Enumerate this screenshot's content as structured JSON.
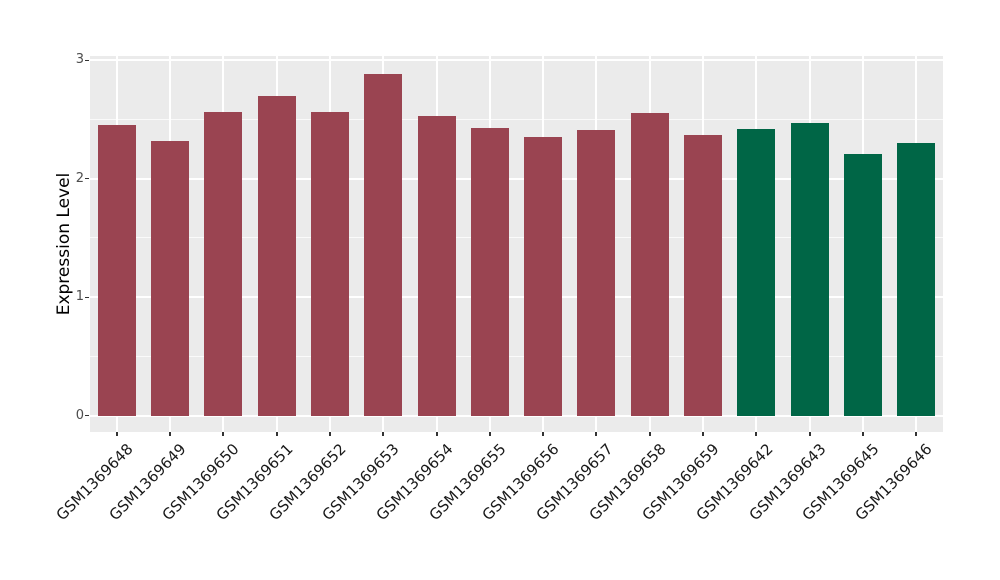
{
  "chart_data": {
    "type": "bar",
    "title": "",
    "ylabel": "Expression Level",
    "xlabel": "",
    "categories": [
      "GSM1369648",
      "GSM1369649",
      "GSM1369650",
      "GSM1369651",
      "GSM1369652",
      "GSM1369653",
      "GSM1369654",
      "GSM1369655",
      "GSM1369656",
      "GSM1369657",
      "GSM1369658",
      "GSM1369659",
      "GSM1369642",
      "GSM1369643",
      "GSM1369645",
      "GSM1369646"
    ],
    "values": [
      2.45,
      2.32,
      2.56,
      2.7,
      2.56,
      2.88,
      2.53,
      2.43,
      2.35,
      2.41,
      2.55,
      2.37,
      2.42,
      2.47,
      2.21,
      2.3
    ],
    "bar_colors": [
      "#9A4451",
      "#9A4451",
      "#9A4451",
      "#9A4451",
      "#9A4451",
      "#9A4451",
      "#9A4451",
      "#9A4451",
      "#9A4451",
      "#9A4451",
      "#9A4451",
      "#9A4451",
      "#006646",
      "#006646",
      "#006646",
      "#006646"
    ],
    "group_colors": {
      "group1": "#9A4451",
      "group2": "#006646"
    },
    "yticks": [
      0,
      1,
      2,
      3
    ],
    "yticks_minor": [
      0.5,
      1.5,
      2.5
    ],
    "ylim": [
      0,
      3
    ],
    "grid": "on",
    "legend": "none",
    "style": {
      "panel_bg": "#EBEBEB",
      "grid_color": "#FFFFFF",
      "tick_color": "#333333",
      "axis_text_color": "#4D4D4D",
      "x_label_color": "#1A1A1A",
      "background": "#FFFFFF"
    }
  }
}
